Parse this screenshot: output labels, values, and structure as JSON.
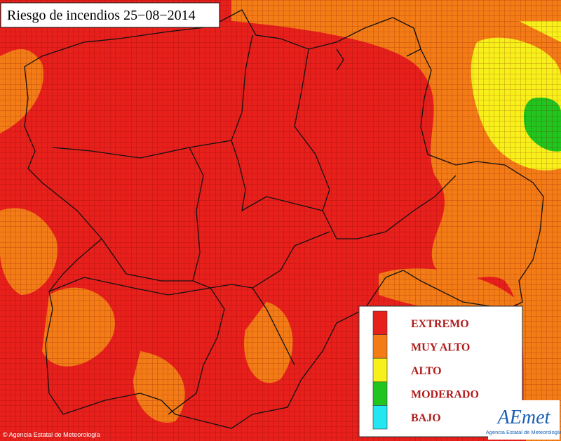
{
  "title": "Riesgo de incendios 25−08−2014",
  "legend": [
    {
      "label": "EXTREMO",
      "color": "#e8201c"
    },
    {
      "label": "MUY ALTO",
      "color": "#f47c16"
    },
    {
      "label": "ALTO",
      "color": "#f8f01a"
    },
    {
      "label": "MODERADO",
      "color": "#22c41e"
    },
    {
      "label": "BAJO",
      "color": "#22e6f0"
    }
  ],
  "credit": "© Agencia Estatal de Meteorología",
  "logo": {
    "name": "AEmet",
    "subtitle": "Agencia Estatal de Meteorología"
  }
}
